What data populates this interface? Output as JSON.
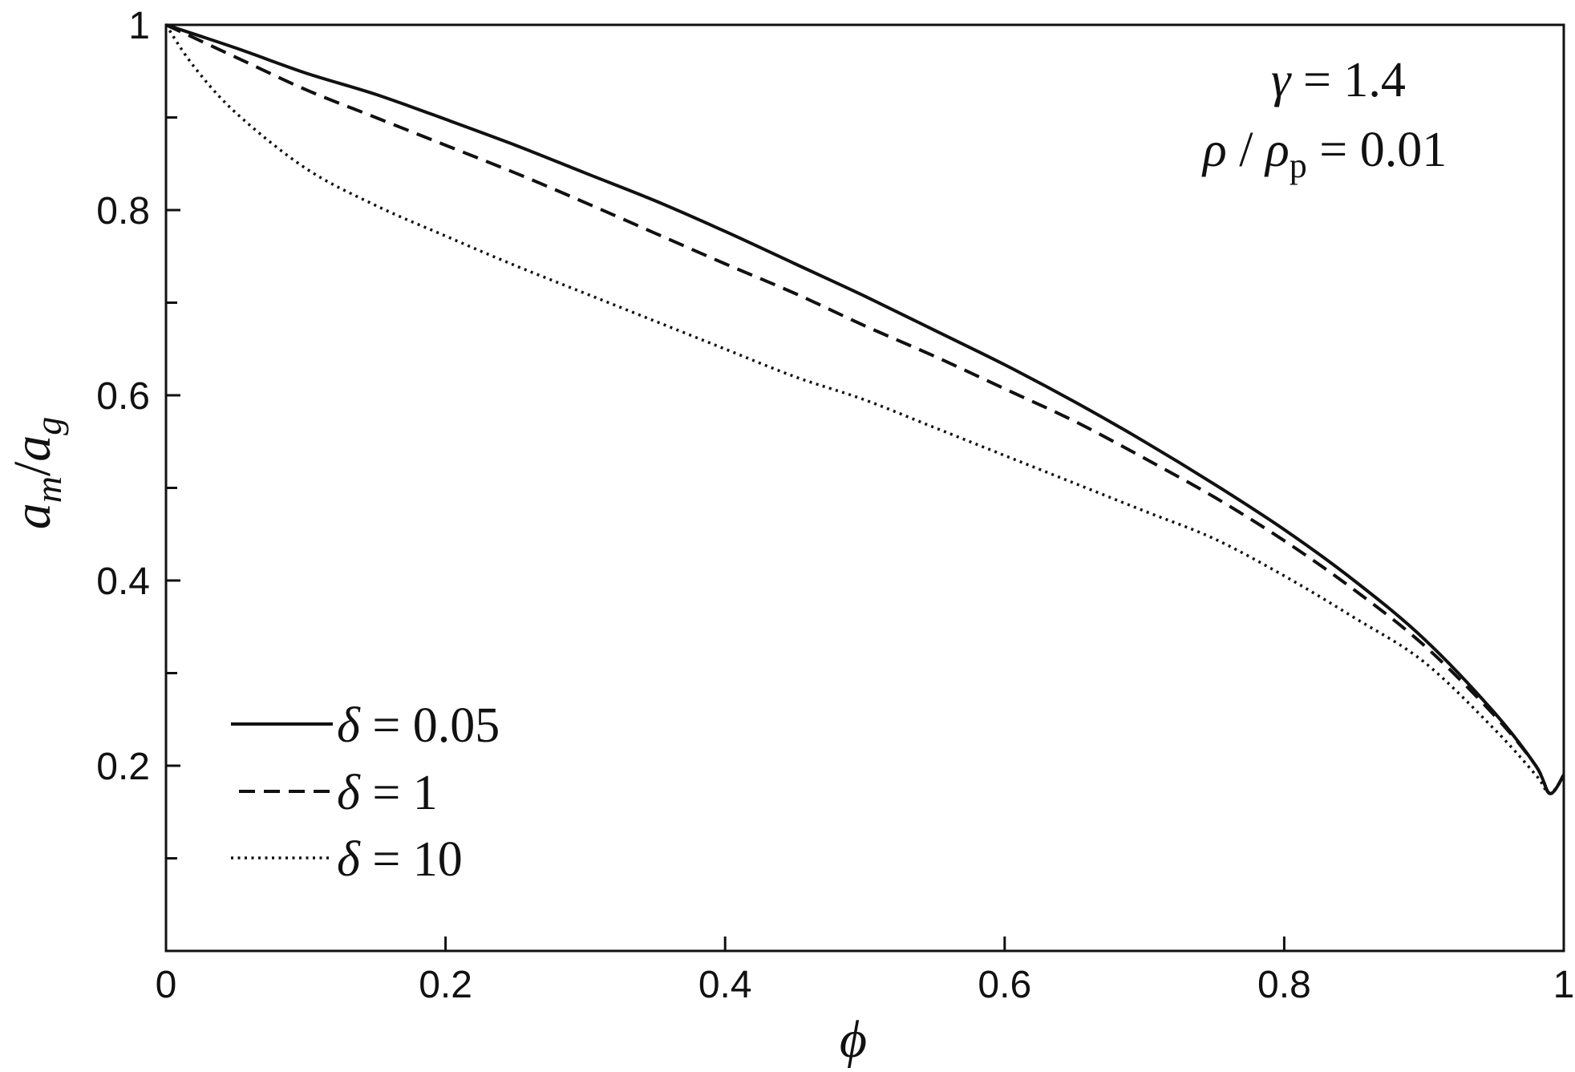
{
  "chart_data": {
    "type": "line",
    "title": "",
    "xlabel": "ϕ",
    "ylabel": {
      "a": "a",
      "sub_m": "m",
      "slash": "/",
      "b": "a",
      "sub_g": "g"
    },
    "xlim": [
      0,
      1
    ],
    "ylim": [
      0,
      1
    ],
    "xticks": [
      {
        "value": 0,
        "label": "0"
      },
      {
        "value": 0.2,
        "label": "0.2"
      },
      {
        "value": 0.4,
        "label": "0.4"
      },
      {
        "value": 0.6,
        "label": "0.6"
      },
      {
        "value": 0.8,
        "label": "0.8"
      },
      {
        "value": 1,
        "label": "1"
      }
    ],
    "yticks": [
      {
        "value": 0.2,
        "label": "0.2"
      },
      {
        "value": 0.4,
        "label": "0.4"
      },
      {
        "value": 0.6,
        "label": "0.6"
      },
      {
        "value": 0.8,
        "label": "0.8"
      },
      {
        "value": 1,
        "label": "1"
      }
    ],
    "minor_yticks": [
      0.1,
      0.3,
      0.5,
      0.7,
      0.9
    ],
    "grid": false,
    "legend_position": "bottom-left",
    "annotations": {
      "gamma": {
        "symbol": "γ",
        "text": " = 1.4"
      },
      "rho": {
        "symbol": "ρ",
        "slash": " / ",
        "symbol2": "ρ",
        "sub": "p",
        "text": " = 0.01"
      }
    },
    "series": [
      {
        "name": {
          "symbol": "δ",
          "text": " = 0.05"
        },
        "style": "solid",
        "x": [
          0,
          0.05,
          0.1,
          0.15,
          0.2,
          0.25,
          0.3,
          0.35,
          0.4,
          0.45,
          0.5,
          0.55,
          0.6,
          0.65,
          0.7,
          0.75,
          0.8,
          0.85,
          0.9,
          0.95,
          0.98,
          0.99,
          1.0
        ],
        "y": [
          1.0,
          0.975,
          0.948,
          0.925,
          0.898,
          0.87,
          0.84,
          0.81,
          0.777,
          0.742,
          0.707,
          0.67,
          0.633,
          0.593,
          0.55,
          0.504,
          0.455,
          0.4,
          0.337,
          0.258,
          0.2,
          0.17,
          0.19
        ]
      },
      {
        "name": {
          "symbol": "δ",
          "text": " = 1"
        },
        "style": "dashed",
        "x": [
          0,
          0.05,
          0.1,
          0.15,
          0.2,
          0.25,
          0.3,
          0.35,
          0.4,
          0.45,
          0.5,
          0.55,
          0.6,
          0.65,
          0.7,
          0.75,
          0.8,
          0.85,
          0.9,
          0.95,
          0.98,
          0.99,
          1.0
        ],
        "y": [
          1.0,
          0.965,
          0.93,
          0.9,
          0.87,
          0.84,
          0.808,
          0.775,
          0.742,
          0.71,
          0.675,
          0.642,
          0.607,
          0.572,
          0.532,
          0.49,
          0.443,
          0.39,
          0.33,
          0.255,
          0.2,
          0.17,
          0.19
        ]
      },
      {
        "name": {
          "symbol": "δ",
          "text": " = 10"
        },
        "style": "dotted",
        "x": [
          0,
          0.02,
          0.05,
          0.1,
          0.15,
          0.2,
          0.25,
          0.3,
          0.35,
          0.4,
          0.45,
          0.5,
          0.55,
          0.6,
          0.65,
          0.7,
          0.75,
          0.8,
          0.85,
          0.9,
          0.95,
          0.98,
          0.99,
          1.0
        ],
        "y": [
          1.0,
          0.955,
          0.905,
          0.845,
          0.805,
          0.772,
          0.74,
          0.71,
          0.68,
          0.65,
          0.62,
          0.595,
          0.565,
          0.535,
          0.505,
          0.475,
          0.445,
          0.405,
          0.36,
          0.312,
          0.24,
          0.19,
          0.17,
          0.19
        ]
      }
    ]
  }
}
